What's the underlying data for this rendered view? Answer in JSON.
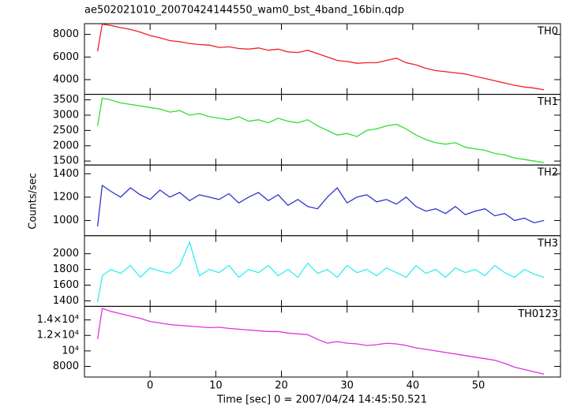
{
  "chart_data": [
    {
      "type": "line",
      "title": "ae502021010_20070424144550_wam0_bst_4band_16bin.qdp",
      "label": "TH0",
      "color": "#ee2222",
      "x": [
        -8,
        -7.3,
        -6,
        -4.5,
        -3,
        -1.5,
        0,
        1.5,
        3,
        4.5,
        6,
        7.5,
        9,
        10.5,
        12,
        13.5,
        15,
        16.5,
        18,
        19.5,
        21,
        22.5,
        24,
        25.5,
        27,
        28.5,
        30,
        31.5,
        33,
        34.5,
        36,
        37.5,
        39,
        40.5,
        42,
        43.5,
        45,
        46.5,
        48,
        49.5,
        51,
        52.5,
        54,
        55.5,
        57,
        58.5,
        60
      ],
      "values": [
        6500,
        8900,
        8800,
        8600,
        8450,
        8200,
        7900,
        7700,
        7450,
        7350,
        7200,
        7100,
        7050,
        6850,
        6900,
        6750,
        6700,
        6800,
        6600,
        6700,
        6450,
        6400,
        6600,
        6300,
        6000,
        5700,
        5600,
        5450,
        5500,
        5500,
        5700,
        5900,
        5500,
        5300,
        5000,
        4800,
        4700,
        4600,
        4500,
        4300,
        4100,
        3900,
        3700,
        3500,
        3350,
        3250,
        3100
      ],
      "xlim": [
        -10,
        62.5
      ],
      "xticks": [
        0,
        10,
        20,
        30,
        40,
        50
      ],
      "ylim": [
        2700,
        8950
      ],
      "yticks": [
        4000,
        6000,
        8000
      ]
    },
    {
      "type": "line",
      "label": "TH1",
      "color": "#33dd33",
      "x": [
        -8,
        -7.3,
        -6,
        -4.5,
        -3,
        -1.5,
        0,
        1.5,
        3,
        4.5,
        6,
        7.5,
        9,
        10.5,
        12,
        13.5,
        15,
        16.5,
        18,
        19.5,
        21,
        22.5,
        24,
        25.5,
        27,
        28.5,
        30,
        31.5,
        33,
        34.5,
        36,
        37.5,
        39,
        40.5,
        42,
        43.5,
        45,
        46.5,
        48,
        49.5,
        51,
        52.5,
        54,
        55.5,
        57,
        58.5,
        60
      ],
      "values": [
        2650,
        3550,
        3500,
        3400,
        3350,
        3300,
        3250,
        3200,
        3100,
        3150,
        3000,
        3050,
        2950,
        2900,
        2850,
        2950,
        2800,
        2850,
        2750,
        2900,
        2800,
        2750,
        2850,
        2650,
        2500,
        2350,
        2400,
        2300,
        2500,
        2550,
        2650,
        2700,
        2550,
        2350,
        2200,
        2100,
        2050,
        2100,
        1950,
        1900,
        1850,
        1750,
        1700,
        1600,
        1550,
        1500,
        1450
      ],
      "xlim": [
        -10,
        62.5
      ],
      "xticks": [
        0,
        10,
        20,
        30,
        40,
        50
      ],
      "ylim": [
        1370,
        3680
      ],
      "yticks": [
        1500,
        2000,
        2500,
        3000,
        3500
      ]
    },
    {
      "type": "line",
      "label": "TH2",
      "ylabel": "Counts/sec",
      "color": "#3333cc",
      "x": [
        -8,
        -7.3,
        -6,
        -4.5,
        -3,
        -1.5,
        0,
        1.5,
        3,
        4.5,
        6,
        7.5,
        9,
        10.5,
        12,
        13.5,
        15,
        16.5,
        18,
        19.5,
        21,
        22.5,
        24,
        25.5,
        27,
        28.5,
        30,
        31.5,
        33,
        34.5,
        36,
        37.5,
        39,
        40.5,
        42,
        43.5,
        45,
        46.5,
        48,
        49.5,
        51,
        52.5,
        54,
        55.5,
        57,
        58.5,
        60
      ],
      "values": [
        950,
        1300,
        1250,
        1200,
        1280,
        1220,
        1180,
        1260,
        1200,
        1240,
        1170,
        1220,
        1200,
        1180,
        1230,
        1150,
        1200,
        1240,
        1170,
        1220,
        1130,
        1180,
        1120,
        1100,
        1200,
        1280,
        1150,
        1200,
        1220,
        1160,
        1180,
        1140,
        1200,
        1120,
        1080,
        1100,
        1060,
        1120,
        1050,
        1080,
        1100,
        1040,
        1060,
        1000,
        1020,
        980,
        1000
      ],
      "xlim": [
        -10,
        62.5
      ],
      "xticks": [
        0,
        10,
        20,
        30,
        40,
        50
      ],
      "ylim": [
        870,
        1475
      ],
      "yticks": [
        1000,
        1200,
        1400
      ]
    },
    {
      "type": "line",
      "label": "TH3",
      "color": "#33eeee",
      "x": [
        -8,
        -7.3,
        -6,
        -4.5,
        -3,
        -1.5,
        0,
        1.5,
        3,
        4.5,
        6,
        7.5,
        9,
        10.5,
        12,
        13.5,
        15,
        16.5,
        18,
        19.5,
        21,
        22.5,
        24,
        25.5,
        27,
        28.5,
        30,
        31.5,
        33,
        34.5,
        36,
        37.5,
        39,
        40.5,
        42,
        43.5,
        45,
        46.5,
        48,
        49.5,
        51,
        52.5,
        54,
        55.5,
        57,
        58.5,
        60
      ],
      "values": [
        1380,
        1720,
        1800,
        1750,
        1850,
        1700,
        1820,
        1780,
        1750,
        1850,
        2150,
        1720,
        1800,
        1760,
        1850,
        1700,
        1800,
        1760,
        1850,
        1720,
        1800,
        1700,
        1880,
        1750,
        1800,
        1700,
        1850,
        1760,
        1800,
        1720,
        1820,
        1760,
        1700,
        1850,
        1750,
        1800,
        1700,
        1820,
        1760,
        1800,
        1720,
        1850,
        1760,
        1700,
        1800,
        1740,
        1700
      ],
      "xlim": [
        -10,
        62.5
      ],
      "xticks": [
        0,
        10,
        20,
        30,
        40,
        50
      ],
      "ylim": [
        1330,
        2230
      ],
      "yticks": [
        1400,
        1600,
        1800,
        2000
      ]
    },
    {
      "type": "line",
      "label": "TH0123",
      "xlabel": "Time [sec] 0 = 2007/04/24 14:45:50.521",
      "color": "#dd33dd",
      "x": [
        -8,
        -7.3,
        -6,
        -4.5,
        -3,
        -1.5,
        0,
        1.5,
        3,
        4.5,
        6,
        7.5,
        9,
        10.5,
        12,
        13.5,
        15,
        16.5,
        18,
        19.5,
        21,
        22.5,
        24,
        25.5,
        27,
        28.5,
        30,
        31.5,
        33,
        34.5,
        36,
        37.5,
        39,
        40.5,
        42,
        43.5,
        45,
        46.5,
        48,
        49.5,
        51,
        52.5,
        54,
        55.5,
        57,
        58.5,
        60
      ],
      "values": [
        11500,
        15500,
        15100,
        14800,
        14500,
        14200,
        13800,
        13600,
        13400,
        13300,
        13200,
        13100,
        13000,
        13050,
        12900,
        12800,
        12700,
        12600,
        12500,
        12500,
        12300,
        12200,
        12100,
        11500,
        11000,
        11200,
        11000,
        10900,
        10700,
        10800,
        11000,
        10900,
        10700,
        10400,
        10200,
        10000,
        9800,
        9600,
        9400,
        9200,
        9000,
        8800,
        8400,
        7900,
        7600,
        7300,
        7000
      ],
      "xlim": [
        -10,
        62.5
      ],
      "xticks": [
        0,
        10,
        20,
        30,
        40,
        50
      ],
      "ylim": [
        6630,
        15750
      ],
      "yticks": [
        8000,
        {
          "value": 10000,
          "label": "10⁴"
        },
        {
          "value": 12000,
          "label": "1.2×10⁴"
        },
        {
          "value": 14000,
          "label": "1.4×10⁴"
        }
      ]
    }
  ]
}
